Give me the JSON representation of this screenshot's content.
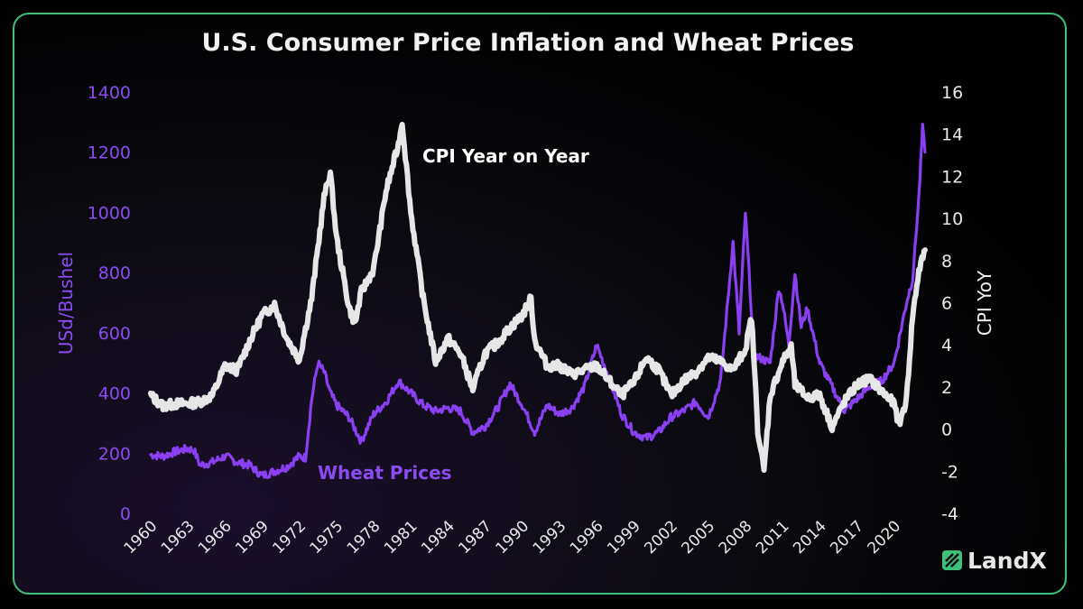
{
  "brand": {
    "name": "LandX",
    "color": "#3fc07a",
    "icon": "landx-logo-icon"
  },
  "colors": {
    "wheat": "#8a3ff2",
    "cpi": "#e6e6e6",
    "frame_left": "#6a3de0",
    "frame_right": "#3fc07a"
  },
  "chart_data": {
    "type": "line",
    "title": "U.S. Consumer Price Inflation and Wheat Prices",
    "ylabel_left": "USd/Bushel",
    "ylabel_right": "CPI YoY",
    "xlim": [
      1959.5,
      2022.5
    ],
    "ylim_left": [
      0,
      1400
    ],
    "ylim_right": [
      -4,
      16
    ],
    "x_ticks": [
      "1960",
      "1963",
      "1966",
      "1969",
      "1972",
      "1975",
      "1978",
      "1981",
      "1984",
      "1987",
      "1990",
      "1993",
      "1996",
      "1999",
      "2002",
      "2005",
      "2008",
      "2011",
      "2014",
      "2017",
      "2020"
    ],
    "y_left_ticks": [
      0,
      200,
      400,
      600,
      800,
      1000,
      1200,
      1400
    ],
    "y_right_ticks": [
      -4,
      -2,
      0,
      2,
      4,
      6,
      8,
      10,
      12,
      14,
      16
    ],
    "grid": false,
    "annotations": [
      {
        "text": "CPI Year on Year",
        "series": "cpi"
      },
      {
        "text": "Wheat Prices",
        "series": "wheat"
      }
    ],
    "series": [
      {
        "name": "Wheat Prices",
        "axis": "left",
        "x": [
          1960,
          1961,
          1962,
          1963,
          1963.5,
          1964,
          1965,
          1966,
          1967,
          1968,
          1969,
          1970,
          1971,
          1972,
          1972.5,
          1973,
          1973.5,
          1974,
          1974.5,
          1975,
          1976,
          1977,
          1978,
          1979,
          1980,
          1981,
          1982,
          1983,
          1984,
          1985,
          1986,
          1987,
          1988,
          1989,
          1990,
          1991,
          1992,
          1993,
          1994,
          1995,
          1996,
          1997,
          1998,
          1999,
          2000,
          2001,
          2002,
          2003,
          2004,
          2005,
          2006,
          2007,
          2007.5,
          2008,
          2008.3,
          2008.7,
          2009,
          2010,
          2010.7,
          2011,
          2011.5,
          2012,
          2012.5,
          2013,
          2014,
          2015,
          2016,
          2017,
          2018,
          2019,
          2020,
          2021,
          2021.5,
          2022,
          2022.3,
          2022.5
        ],
        "y": [
          195,
          190,
          205,
          215,
          210,
          160,
          170,
          190,
          170,
          160,
          125,
          140,
          155,
          190,
          185,
          380,
          500,
          470,
          400,
          360,
          320,
          240,
          330,
          370,
          440,
          400,
          360,
          340,
          350,
          340,
          270,
          290,
          350,
          430,
          360,
          270,
          360,
          330,
          350,
          420,
          560,
          450,
          330,
          270,
          250,
          270,
          320,
          340,
          370,
          320,
          440,
          900,
          600,
          1000,
          800,
          520,
          520,
          500,
          750,
          700,
          560,
          800,
          620,
          680,
          500,
          420,
          340,
          380,
          420,
          440,
          500,
          700,
          780,
          1050,
          1280,
          1200
        ]
      },
      {
        "name": "CPI Year on Year",
        "axis": "right",
        "x": [
          1960,
          1961,
          1962,
          1963,
          1964,
          1965,
          1966,
          1967,
          1968,
          1969,
          1970,
          1971,
          1972,
          1973,
          1974,
          1974.5,
          1975,
          1976,
          1976.5,
          1977,
          1978,
          1979,
          1980,
          1980.3,
          1981,
          1982,
          1983,
          1984,
          1985,
          1986,
          1987,
          1988,
          1989,
          1990,
          1990.7,
          1991,
          1992,
          1993,
          1994,
          1995,
          1996,
          1997,
          1998,
          1999,
          2000,
          2001,
          2002,
          2003,
          2004,
          2005,
          2006,
          2007,
          2008,
          2008.5,
          2009,
          2009.5,
          2010,
          2011,
          2011.7,
          2012,
          2013,
          2014,
          2015,
          2016,
          2017,
          2018,
          2019,
          2020,
          2020.4,
          2021,
          2021.5,
          2022,
          2022.5
        ],
        "y": [
          1.6,
          1.1,
          1.2,
          1.2,
          1.3,
          1.6,
          3.0,
          2.8,
          4.2,
          5.4,
          5.9,
          4.3,
          3.3,
          6.2,
          11.0,
          12.2,
          9.1,
          5.8,
          5.0,
          6.5,
          7.6,
          11.3,
          13.5,
          14.6,
          10.3,
          6.2,
          3.2,
          4.3,
          3.6,
          1.9,
          3.6,
          4.1,
          4.8,
          5.4,
          6.2,
          4.2,
          3.0,
          3.0,
          2.6,
          2.8,
          3.0,
          2.3,
          1.6,
          2.2,
          3.4,
          2.8,
          1.6,
          2.3,
          2.7,
          3.4,
          3.2,
          2.8,
          3.8,
          5.3,
          0.0,
          -2.0,
          1.6,
          3.2,
          3.9,
          2.1,
          1.5,
          1.6,
          0.1,
          1.3,
          2.1,
          2.4,
          1.8,
          1.2,
          0.2,
          1.4,
          5.4,
          7.5,
          8.5
        ]
      }
    ]
  }
}
